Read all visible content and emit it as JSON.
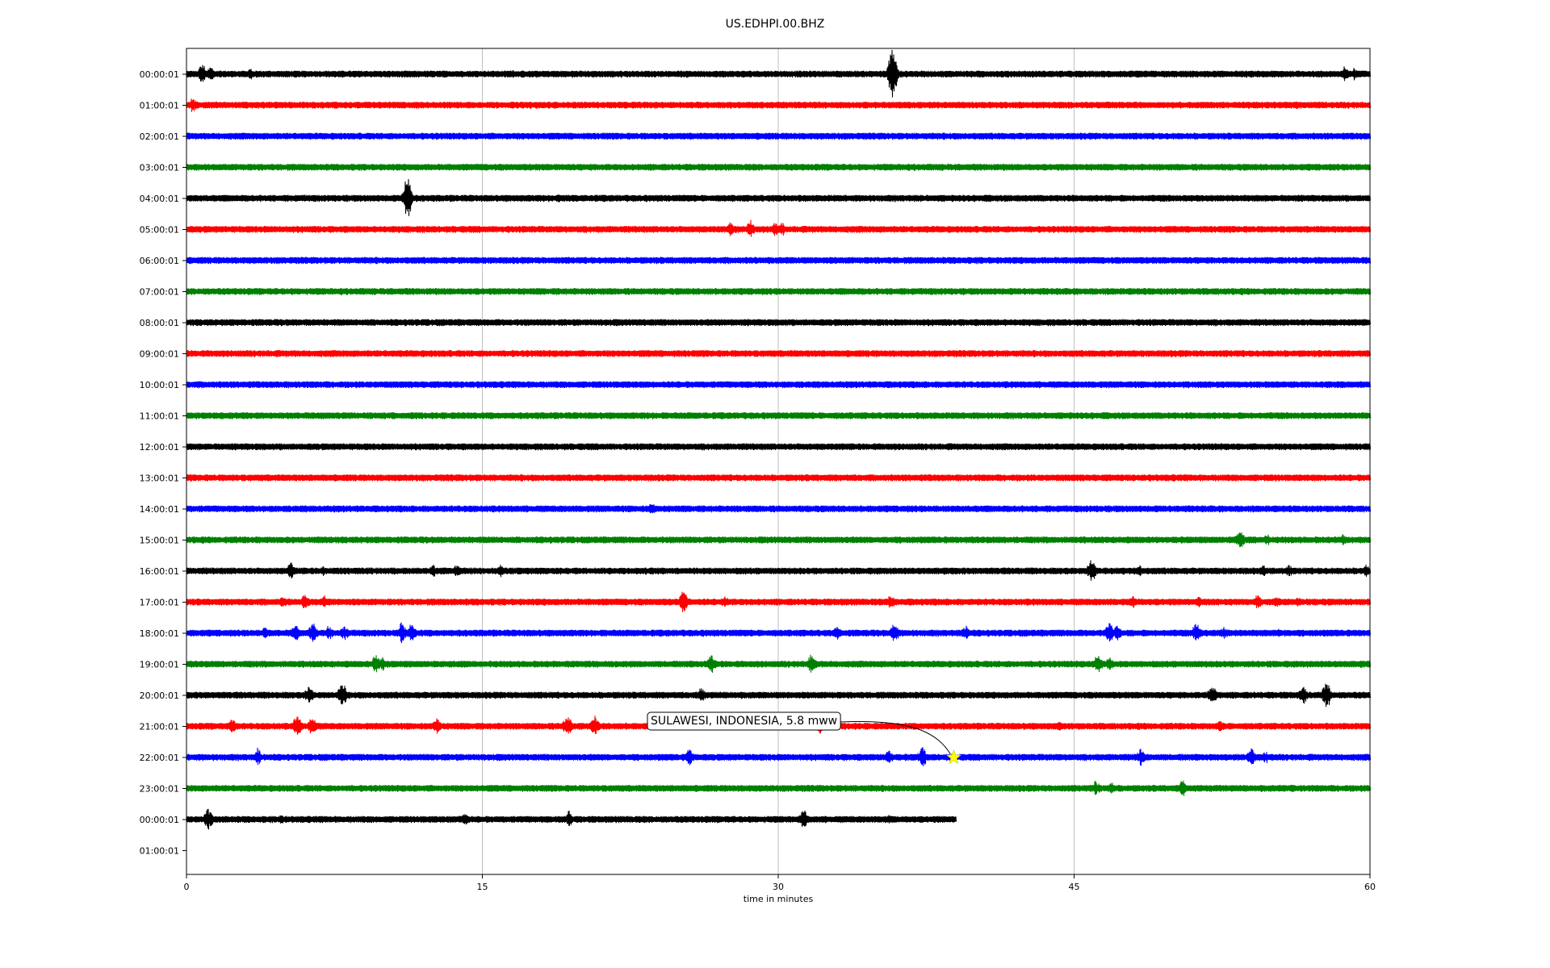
{
  "chart_data": {
    "type": "line",
    "title": "US.EDHPI.00.BHZ",
    "xlabel": "time in minutes",
    "ylabel": "",
    "xlim": [
      0,
      60
    ],
    "xticks": [
      "0",
      "15",
      "30",
      "45",
      "60"
    ],
    "xtick_values": [
      0,
      15,
      30,
      45,
      60
    ],
    "grid": "vertical",
    "colors": [
      "#000000",
      "#ff0000",
      "#0000ff",
      "#008000"
    ],
    "rows": [
      {
        "label": "00:00:01",
        "color": "#000000",
        "end": 60,
        "events": [
          [
            0.8,
            14
          ],
          [
            1.2,
            10
          ],
          [
            3.2,
            8
          ],
          [
            16.6,
            6
          ],
          [
            35.8,
            38
          ],
          [
            58.7,
            10
          ],
          [
            59.2,
            8
          ]
        ]
      },
      {
        "label": "01:00:01",
        "color": "#ff0000",
        "end": 60,
        "events": [
          [
            0.3,
            10
          ],
          [
            7.3,
            4
          ]
        ]
      },
      {
        "label": "02:00:01",
        "color": "#0000ff",
        "end": 60,
        "events": []
      },
      {
        "label": "03:00:01",
        "color": "#008000",
        "end": 60,
        "events": [
          [
            1.8,
            4
          ]
        ]
      },
      {
        "label": "04:00:01",
        "color": "#000000",
        "end": 60,
        "events": [
          [
            11.2,
            30
          ],
          [
            18.9,
            6
          ],
          [
            20.3,
            4
          ]
        ]
      },
      {
        "label": "05:00:01",
        "color": "#ff0000",
        "end": 60,
        "events": [
          [
            27.6,
            10
          ],
          [
            28.6,
            12
          ],
          [
            29.8,
            10
          ],
          [
            30.2,
            9
          ]
        ]
      },
      {
        "label": "06:00:01",
        "color": "#0000ff",
        "end": 60,
        "events": [
          [
            28.9,
            4
          ]
        ]
      },
      {
        "label": "07:00:01",
        "color": "#008000",
        "end": 60,
        "events": []
      },
      {
        "label": "08:00:01",
        "color": "#000000",
        "end": 60,
        "events": [
          [
            27.6,
            4
          ]
        ]
      },
      {
        "label": "09:00:01",
        "color": "#ff0000",
        "end": 60,
        "events": []
      },
      {
        "label": "10:00:01",
        "color": "#0000ff",
        "end": 60,
        "events": []
      },
      {
        "label": "11:00:01",
        "color": "#008000",
        "end": 60,
        "events": []
      },
      {
        "label": "12:00:01",
        "color": "#000000",
        "end": 60,
        "events": []
      },
      {
        "label": "13:00:01",
        "color": "#ff0000",
        "end": 60,
        "events": []
      },
      {
        "label": "14:00:01",
        "color": "#0000ff",
        "end": 60,
        "events": [
          [
            23.6,
            10
          ]
        ]
      },
      {
        "label": "15:00:01",
        "color": "#008000",
        "end": 60,
        "events": [
          [
            53.4,
            14
          ],
          [
            54.8,
            8
          ],
          [
            58.6,
            8
          ]
        ]
      },
      {
        "label": "16:00:01",
        "color": "#000000",
        "end": 60,
        "events": [
          [
            5.3,
            12
          ],
          [
            6.9,
            6
          ],
          [
            12.5,
            8
          ],
          [
            13.7,
            8
          ],
          [
            15.9,
            8
          ],
          [
            45.9,
            18
          ],
          [
            48.3,
            8
          ],
          [
            54.6,
            8
          ],
          [
            55.9,
            8
          ],
          [
            59.8,
            8
          ]
        ]
      },
      {
        "label": "17:00:01",
        "color": "#ff0000",
        "end": 60,
        "events": [
          [
            4.9,
            8
          ],
          [
            6.0,
            10
          ],
          [
            7.0,
            8
          ],
          [
            25.2,
            16
          ],
          [
            27.3,
            8
          ],
          [
            35.7,
            10
          ],
          [
            48.0,
            8
          ],
          [
            51.3,
            8
          ],
          [
            54.3,
            10
          ],
          [
            55.3,
            8
          ],
          [
            56.4,
            8
          ]
        ]
      },
      {
        "label": "18:00:01",
        "color": "#0000ff",
        "end": 60,
        "events": [
          [
            4.0,
            8
          ],
          [
            5.5,
            12
          ],
          [
            6.4,
            14
          ],
          [
            7.2,
            10
          ],
          [
            8.0,
            10
          ],
          [
            10.9,
            14
          ],
          [
            11.4,
            14
          ],
          [
            33.0,
            10
          ],
          [
            35.9,
            14
          ],
          [
            39.5,
            10
          ],
          [
            46.8,
            14
          ],
          [
            47.2,
            10
          ],
          [
            51.2,
            14
          ],
          [
            52.6,
            8
          ],
          [
            55.4,
            6
          ]
        ]
      },
      {
        "label": "19:00:01",
        "color": "#008000",
        "end": 60,
        "events": [
          [
            9.6,
            14
          ],
          [
            9.9,
            10
          ],
          [
            26.6,
            14
          ],
          [
            31.7,
            14
          ],
          [
            46.2,
            14
          ],
          [
            46.8,
            10
          ]
        ]
      },
      {
        "label": "20:00:01",
        "color": "#000000",
        "end": 60,
        "events": [
          [
            6.2,
            12
          ],
          [
            7.9,
            18
          ],
          [
            26.1,
            10
          ],
          [
            52.0,
            14
          ],
          [
            56.6,
            12
          ],
          [
            57.8,
            18
          ]
        ]
      },
      {
        "label": "21:00:01",
        "color": "#ff0000",
        "end": 60,
        "events": [
          [
            2.3,
            12
          ],
          [
            5.6,
            16
          ],
          [
            6.4,
            14
          ],
          [
            12.7,
            12
          ],
          [
            19.3,
            16
          ],
          [
            20.7,
            14
          ],
          [
            32.1,
            12
          ],
          [
            44.2,
            8
          ],
          [
            52.4,
            8
          ]
        ]
      },
      {
        "label": "22:00:01",
        "color": "#0000ff",
        "end": 60,
        "events": [
          [
            3.6,
            12
          ],
          [
            25.5,
            14
          ],
          [
            35.6,
            10
          ],
          [
            37.3,
            14
          ],
          [
            48.4,
            12
          ],
          [
            54.0,
            12
          ],
          [
            54.7,
            8
          ]
        ]
      },
      {
        "label": "23:00:01",
        "color": "#008000",
        "end": 60,
        "events": [
          [
            46.1,
            10
          ],
          [
            46.9,
            8
          ],
          [
            50.5,
            12
          ],
          [
            56.0,
            6
          ]
        ]
      },
      {
        "label": "00:00:01",
        "color": "#000000",
        "end": 39.0,
        "events": [
          [
            1.1,
            14
          ],
          [
            4.8,
            6
          ],
          [
            14.1,
            10
          ],
          [
            19.4,
            12
          ],
          [
            31.3,
            14
          ],
          [
            35.6,
            6
          ]
        ]
      },
      {
        "label": "01:00:01",
        "color": "#000000",
        "end": 0,
        "events": []
      }
    ],
    "annotation": {
      "text": "SULAWESI, INDONESIA, 5.8 mww",
      "row": 22,
      "time": 38.9,
      "marker": "star",
      "marker_color": "#ffff00"
    }
  }
}
